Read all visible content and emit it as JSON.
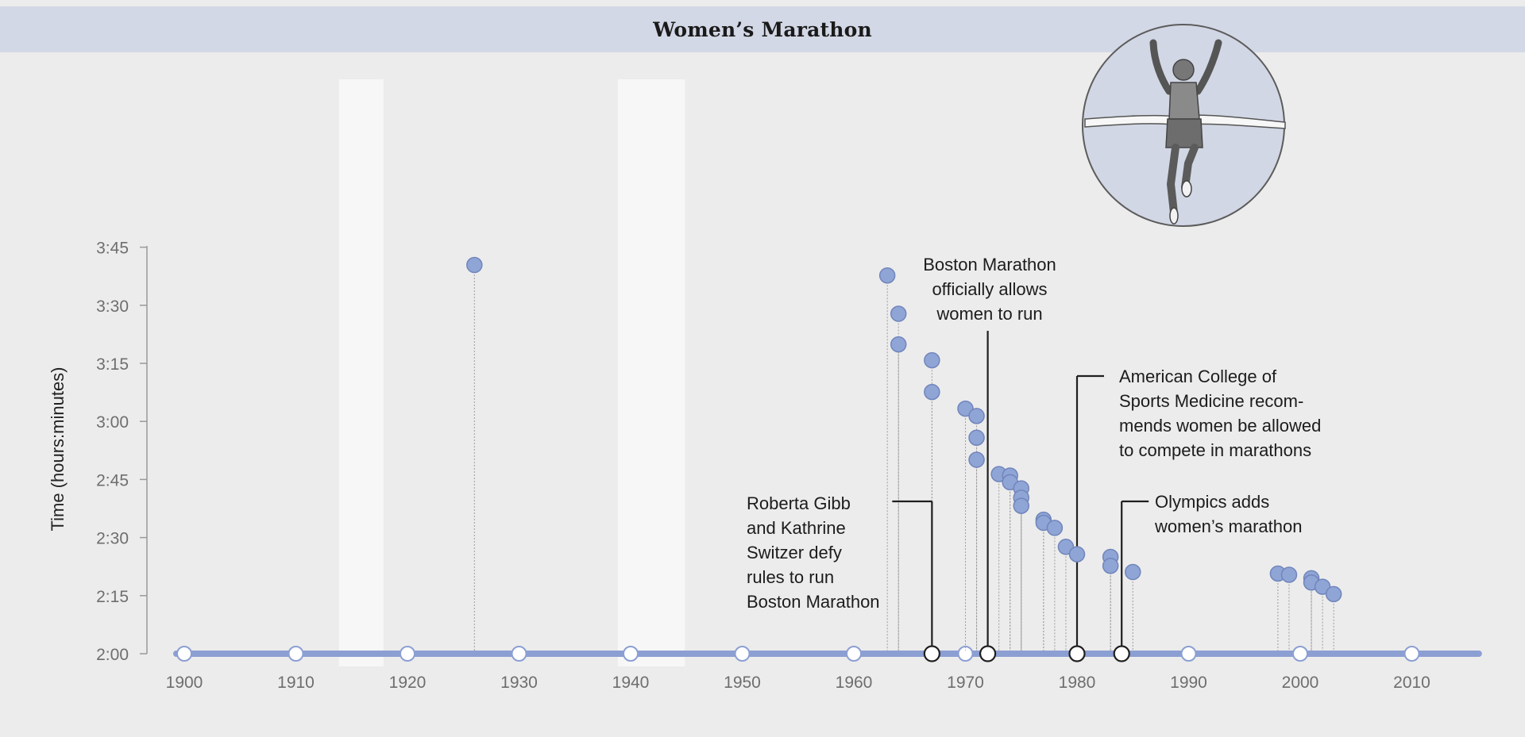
{
  "title": "Women’s Marathon",
  "chart_data": {
    "type": "scatter",
    "title": "Women’s Marathon",
    "xlabel": "",
    "ylabel": "Time (hours:minutes)",
    "xlim": [
      1900,
      2016
    ],
    "ylim_minutes": [
      120,
      225
    ],
    "x_ticks": [
      1900,
      1910,
      1920,
      1930,
      1940,
      1950,
      1960,
      1970,
      1980,
      1990,
      2000,
      2010
    ],
    "x_tick_labels": [
      "1900",
      "1910",
      "1920",
      "1930",
      "1940",
      "1950",
      "1960",
      "1970",
      "1980",
      "1990",
      "2000",
      "2010"
    ],
    "y_ticks_minutes": [
      120,
      135,
      150,
      165,
      180,
      195,
      210,
      225
    ],
    "y_tick_labels": [
      "2:00",
      "2:15",
      "2:30",
      "2:45",
      "3:00",
      "3:15",
      "3:30",
      "3:45"
    ],
    "shaded_periods": [
      [
        1914,
        1918
      ],
      [
        1939,
        1945
      ]
    ],
    "series": [
      {
        "name": "Women’s marathon record times",
        "points": [
          {
            "x": 1926,
            "y": 220.4
          },
          {
            "x": 1963,
            "y": 217.7
          },
          {
            "x": 1964,
            "y": 207.8
          },
          {
            "x": 1964,
            "y": 199.9
          },
          {
            "x": 1967,
            "y": 195.8
          },
          {
            "x": 1967,
            "y": 187.6
          },
          {
            "x": 1970,
            "y": 183.3
          },
          {
            "x": 1971,
            "y": 181.4
          },
          {
            "x": 1971,
            "y": 175.8
          },
          {
            "x": 1971,
            "y": 170.1
          },
          {
            "x": 1973,
            "y": 166.4
          },
          {
            "x": 1974,
            "y": 166.0
          },
          {
            "x": 1974,
            "y": 164.3
          },
          {
            "x": 1975,
            "y": 162.7
          },
          {
            "x": 1975,
            "y": 160.3
          },
          {
            "x": 1975,
            "y": 158.2
          },
          {
            "x": 1977,
            "y": 154.6
          },
          {
            "x": 1977,
            "y": 153.8
          },
          {
            "x": 1978,
            "y": 152.5
          },
          {
            "x": 1979,
            "y": 147.6
          },
          {
            "x": 1980,
            "y": 145.7
          },
          {
            "x": 1983,
            "y": 145.0
          },
          {
            "x": 1983,
            "y": 142.7
          },
          {
            "x": 1985,
            "y": 141.1
          },
          {
            "x": 1998,
            "y": 140.7
          },
          {
            "x": 1999,
            "y": 140.4
          },
          {
            "x": 2001,
            "y": 139.5
          },
          {
            "x": 2001,
            "y": 138.4
          },
          {
            "x": 2002,
            "y": 137.3
          },
          {
            "x": 2003,
            "y": 135.4
          }
        ]
      }
    ],
    "milestones": [
      {
        "x": 1967,
        "lines": [
          "Roberta Gibb",
          "and Kathrine",
          "Switzer defy",
          "rules to run",
          "Boston Marathon"
        ]
      },
      {
        "x": 1972,
        "lines": [
          "Boston Marathon",
          "officially allows",
          "women to run"
        ]
      },
      {
        "x": 1980,
        "lines": [
          "American College of",
          "Sports Medicine recom-",
          "mends women be allowed",
          "to compete in marathons"
        ]
      },
      {
        "x": 1984,
        "lines": [
          "Olympics adds",
          "women’s marathon"
        ]
      }
    ]
  },
  "illustration": {
    "icon": "runner-crossing-finish-line-icon"
  },
  "colors": {
    "background": "#ececec",
    "title_bar": "#d3d8e6",
    "axis_line": "#8c9fd3",
    "point_fill": "#8fa5d6",
    "point_stroke": "#7185bb",
    "shade": "#f7f7f7",
    "tick_text": "#6e6e6e"
  }
}
